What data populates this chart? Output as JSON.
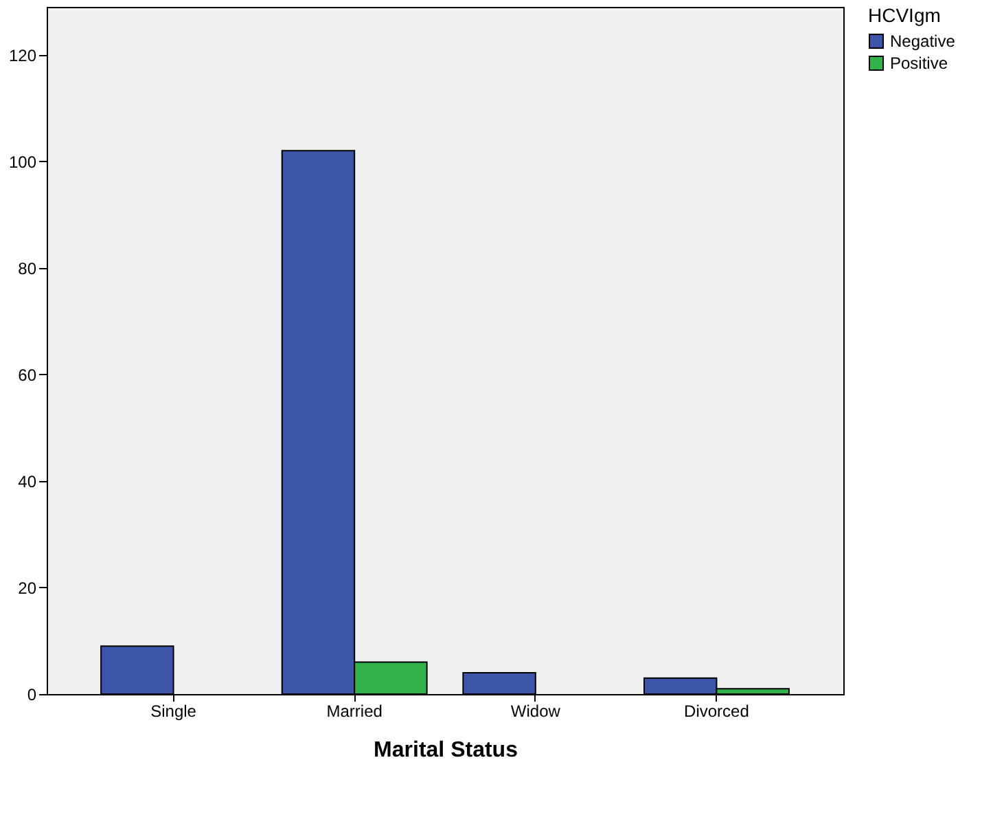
{
  "chart_data": {
    "type": "bar",
    "xlabel": "Marital Status",
    "legend_title": "HCVIgm",
    "categories": [
      "Single",
      "Married",
      "Widow",
      "Divorced"
    ],
    "series": [
      {
        "name": "Negative",
        "color": "#3d55a8",
        "values": [
          9,
          102,
          4,
          3
        ]
      },
      {
        "name": "Positive",
        "color": "#33b24a",
        "values": [
          null,
          6,
          null,
          1
        ]
      }
    ],
    "ylim": [
      0,
      129
    ],
    "yticks": [
      0,
      20,
      40,
      60,
      80,
      100,
      120
    ],
    "grid": false,
    "legend": "top right"
  }
}
